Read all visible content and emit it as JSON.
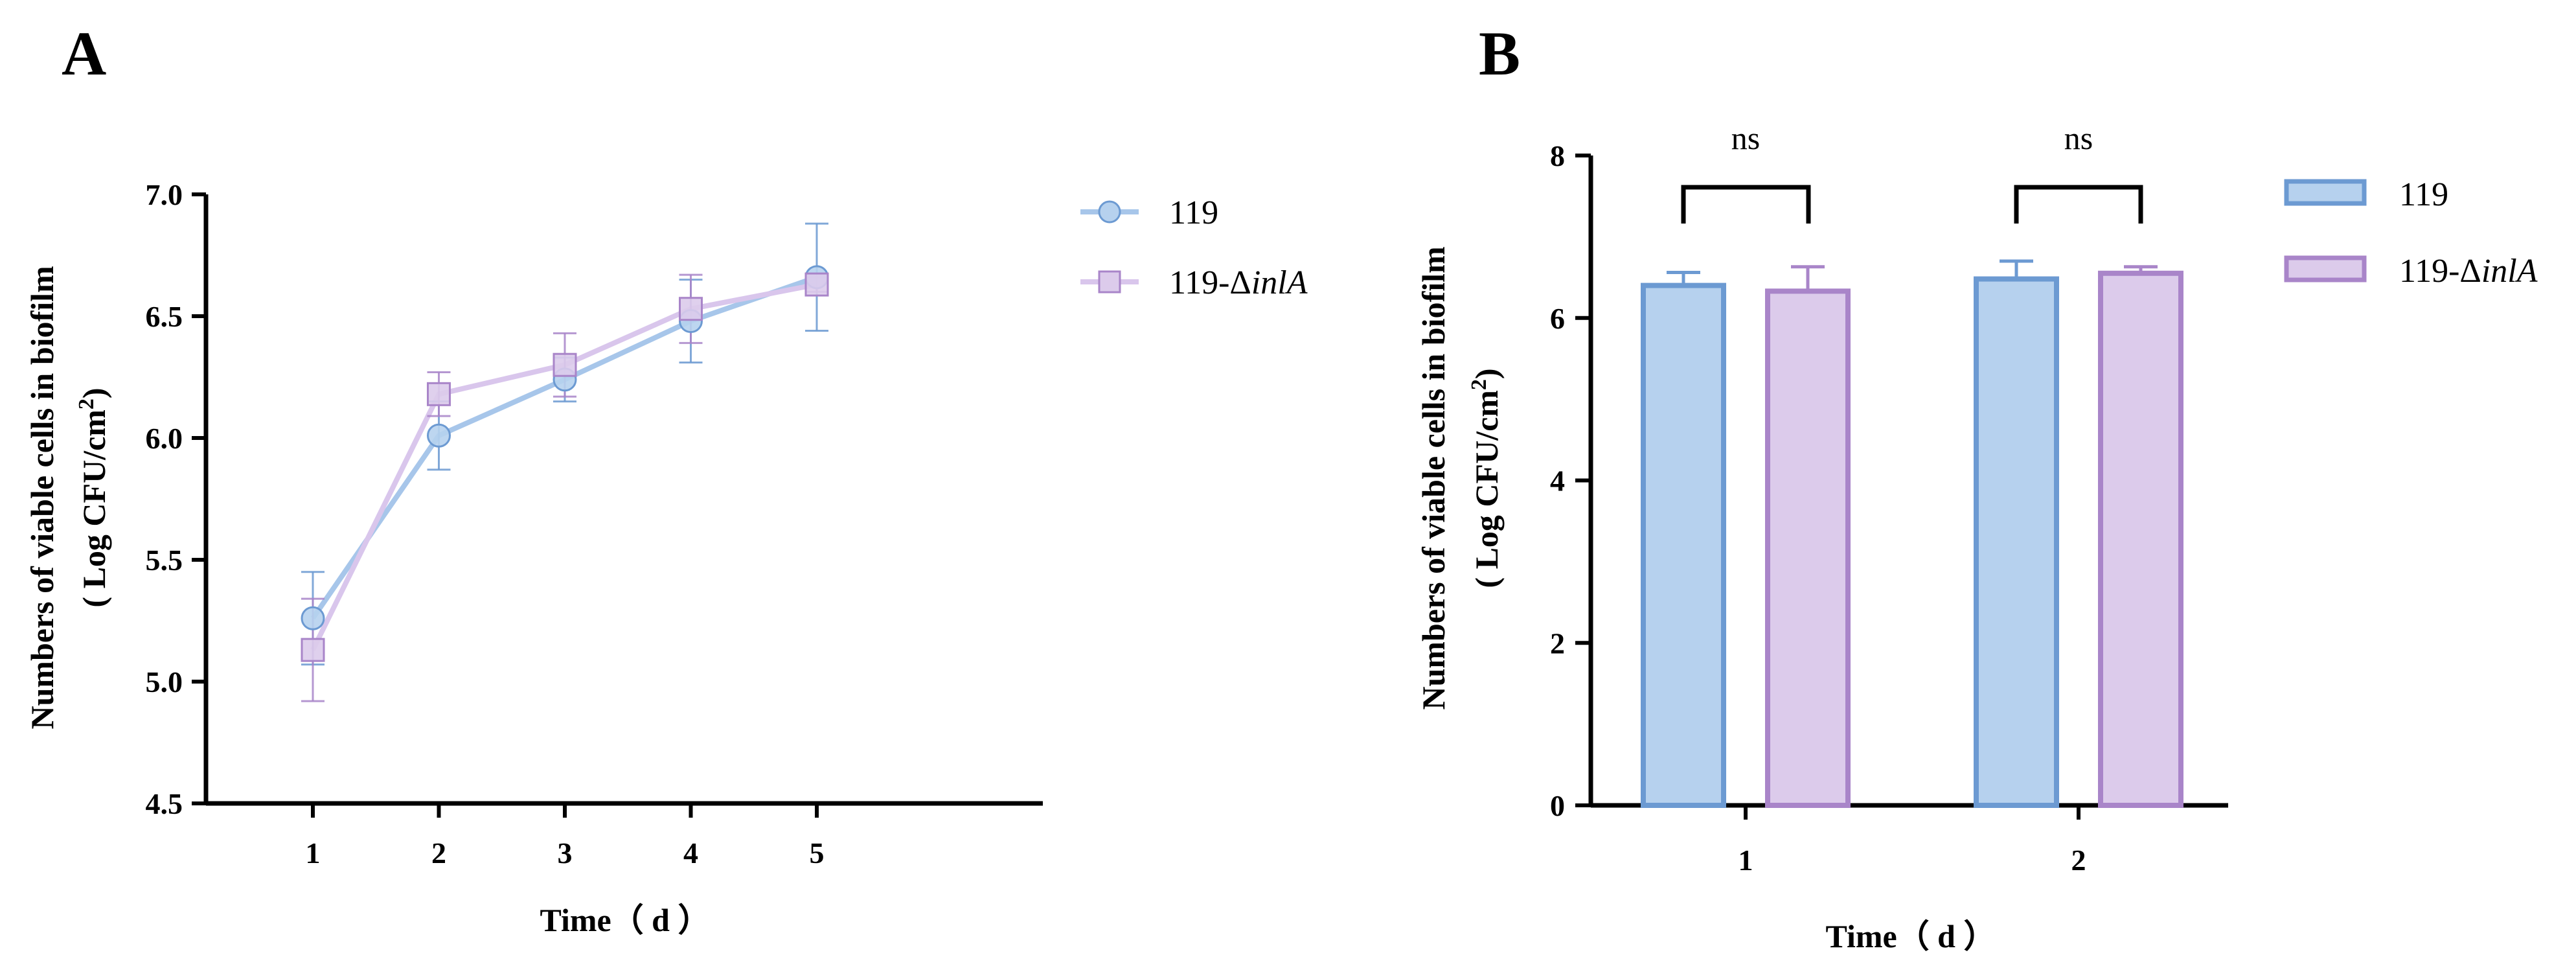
{
  "colors": {
    "s119_fill": "#b6d1ee",
    "s119_stroke": "#6c9ad2",
    "s119_line": "#a7c6ea",
    "sinlA_fill": "#dccbeb",
    "sinlA_stroke": "#a985c9",
    "sinlA_line": "#d9c6ec"
  },
  "chart_data": [
    {
      "panel": "A",
      "type": "line",
      "xlabel": "Time（ d ）",
      "ylabel_line1": "Numbers of viable cells in biofilm",
      "ylabel_line2_prefix": "( Log CFU/cm",
      "ylabel_line2_sup": "2",
      "ylabel_line2_suffix": ")",
      "x": [
        1,
        2,
        3,
        4,
        5
      ],
      "x_tick_labels": [
        "1",
        "2",
        "3",
        "4",
        "5"
      ],
      "ylim": [
        4.5,
        7.0
      ],
      "y_ticks": [
        4.5,
        5.0,
        5.5,
        6.0,
        6.5,
        7.0
      ],
      "y_tick_labels": [
        "4.5",
        "5.0",
        "5.5",
        "6.0",
        "6.5",
        "7.0"
      ],
      "legend_position": "right",
      "series": [
        {
          "name": "119",
          "legend_label": "119",
          "marker": "circle",
          "values": [
            5.26,
            6.01,
            6.24,
            6.48,
            6.66
          ],
          "errors": [
            0.19,
            0.14,
            0.09,
            0.17,
            0.22
          ]
        },
        {
          "name": "119-ΔinlA",
          "legend_prefix": "119-Δ",
          "legend_italic": "inlA",
          "marker": "square",
          "values": [
            5.13,
            6.18,
            6.3,
            6.53,
            6.63
          ],
          "errors": [
            0.21,
            0.09,
            0.13,
            0.14,
            0.03
          ]
        }
      ]
    },
    {
      "panel": "B",
      "type": "bar",
      "xlabel": "Time（ d ）",
      "ylabel_line1": "Numbers of viable cells in biofilm",
      "ylabel_line2_prefix": "( Log CFU/cm",
      "ylabel_line2_sup": "2",
      "ylabel_line2_suffix": ")",
      "categories": [
        "1",
        "2"
      ],
      "ylim": [
        0,
        8
      ],
      "y_ticks": [
        0,
        2,
        4,
        6,
        8
      ],
      "y_tick_labels": [
        "0",
        "2",
        "4",
        "6",
        "8"
      ],
      "legend_position": "right",
      "series": [
        {
          "name": "119",
          "legend_label": "119",
          "values": [
            6.4,
            6.48
          ],
          "errors": [
            0.16,
            0.22
          ]
        },
        {
          "name": "119-ΔinlA",
          "legend_prefix": "119-Δ",
          "legend_italic": "inlA",
          "values": [
            6.33,
            6.55
          ],
          "errors": [
            0.3,
            0.08
          ]
        }
      ],
      "significance": [
        "ns",
        "ns"
      ]
    }
  ]
}
